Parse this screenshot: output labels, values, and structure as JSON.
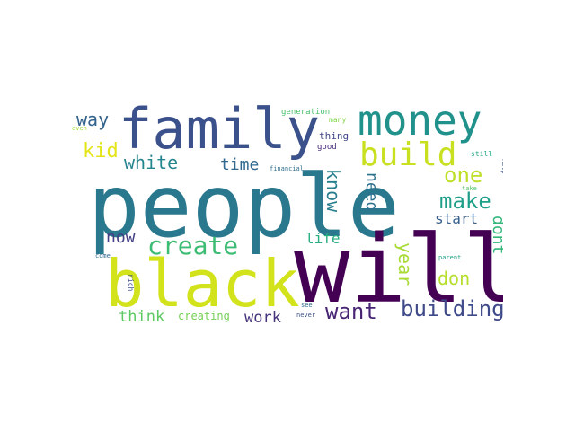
{
  "words": [
    {
      "text": "people",
      "color": "#2a788e"
    },
    {
      "text": "will",
      "color": "#440154"
    },
    {
      "text": "black",
      "color": "#d2e21b"
    },
    {
      "text": "family",
      "color": "#3b518b"
    },
    {
      "text": "money",
      "color": "#21918c"
    },
    {
      "text": "build",
      "color": "#c8e020"
    },
    {
      "text": "create",
      "color": "#3dbc74"
    },
    {
      "text": "building",
      "color": "#3e4a89"
    },
    {
      "text": "want",
      "color": "#482475"
    },
    {
      "text": "make",
      "color": "#1f9f88"
    },
    {
      "text": "one",
      "color": "#bddf26"
    },
    {
      "text": "white",
      "color": "#25858e"
    },
    {
      "text": "kid",
      "color": "#e5e419"
    },
    {
      "text": "way",
      "color": "#33638d"
    },
    {
      "text": "time",
      "color": "#31688e"
    },
    {
      "text": "know",
      "color": "#277f8e"
    },
    {
      "text": "need",
      "color": "#2c718e"
    },
    {
      "text": "start",
      "color": "#355f8d"
    },
    {
      "text": "life",
      "color": "#29af7f"
    },
    {
      "text": "now",
      "color": "#433e85"
    },
    {
      "text": "year",
      "color": "#a8db34"
    },
    {
      "text": "don",
      "color": "#b5de2b"
    },
    {
      "text": "dont",
      "color": "#35b779"
    },
    {
      "text": "think",
      "color": "#5ec962"
    },
    {
      "text": "work",
      "color": "#46337e"
    },
    {
      "text": "creating",
      "color": "#75d054"
    },
    {
      "text": "thing",
      "color": "#404688"
    },
    {
      "text": "good",
      "color": "#472c7a"
    },
    {
      "text": "generation",
      "color": "#4ac16d"
    },
    {
      "text": "many",
      "color": "#86d549"
    },
    {
      "text": "financial",
      "color": "#2d708e"
    },
    {
      "text": "still",
      "color": "#22a884"
    },
    {
      "text": "help",
      "color": "#3a548c"
    },
    {
      "text": "take",
      "color": "#54c568"
    },
    {
      "text": "even",
      "color": "#a5db36"
    },
    {
      "text": "come",
      "color": "#306a8e"
    },
    {
      "text": "rich",
      "color": "#3b528b"
    },
    {
      "text": "see",
      "color": "#2f6b8e"
    },
    {
      "text": "never",
      "color": "#3b518b"
    },
    {
      "text": "parent",
      "color": "#1fa187"
    }
  ]
}
